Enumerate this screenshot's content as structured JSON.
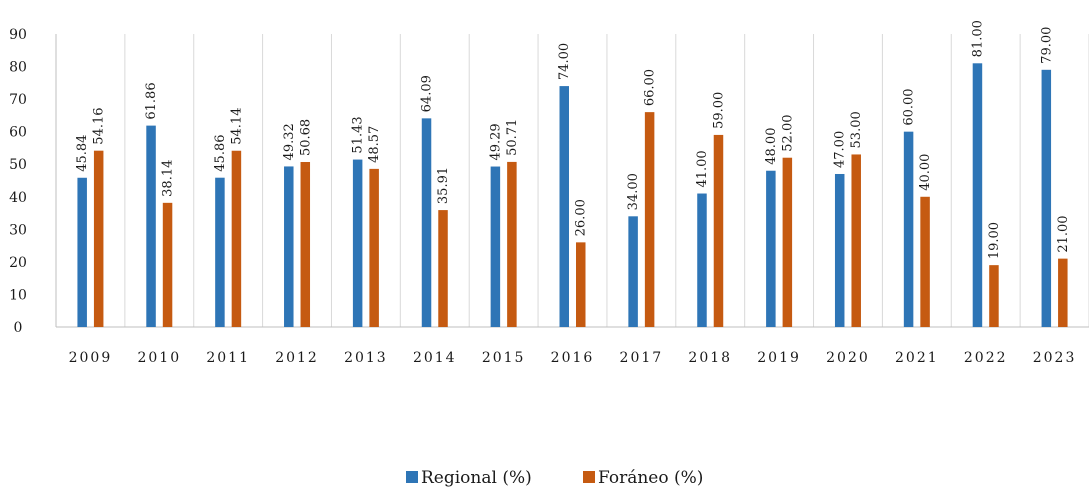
{
  "chart_data": {
    "type": "bar",
    "title": "",
    "xlabel": "",
    "ylabel": "",
    "ylim": [
      0,
      90
    ],
    "yticks": [
      "0",
      "10",
      "20",
      "30",
      "40",
      "50",
      "60",
      "70",
      "80",
      "90"
    ],
    "grid": "vertical",
    "legend": "bottom",
    "categories": [
      "2009",
      "2010",
      "2011",
      "2012",
      "2013",
      "2014",
      "2015",
      "2016",
      "2017",
      "2018",
      "2019",
      "2020",
      "2021",
      "2022",
      "2023"
    ],
    "series": [
      {
        "name": "Regional (%)",
        "color": "#2E75B6",
        "values": [
          45.84,
          61.86,
          45.86,
          49.32,
          51.43,
          64.09,
          49.29,
          74.0,
          34.0,
          41.0,
          48.0,
          47.0,
          60.0,
          81.0,
          79.0
        ],
        "labels": [
          "45.84",
          "61.86",
          "45.86",
          "49.32",
          "51.43",
          "64.09",
          "49.29",
          "74.00",
          "34.00",
          "41.00",
          "48.00",
          "47.00",
          "60.00",
          "81.00",
          "79.00"
        ]
      },
      {
        "name": "Foráneo (%)",
        "color": "#C55A11",
        "values": [
          54.16,
          38.14,
          54.14,
          50.68,
          48.57,
          35.91,
          50.71,
          26.0,
          66.0,
          59.0,
          52.0,
          53.0,
          40.0,
          19.0,
          21.0
        ],
        "labels": [
          "54.16",
          "38.14",
          "54.14",
          "50.68",
          "48.57",
          "35.91",
          "50.71",
          "26.00",
          "66.00",
          "59.00",
          "52.00",
          "53.00",
          "40.00",
          "19.00",
          "21.00"
        ]
      }
    ]
  }
}
